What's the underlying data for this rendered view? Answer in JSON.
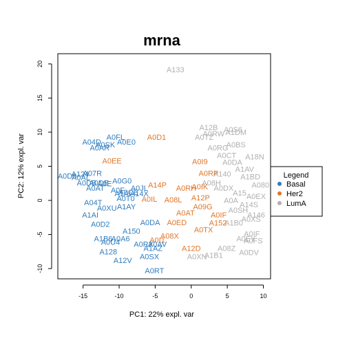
{
  "chart_data": {
    "type": "scatter",
    "title": "mrna",
    "xlabel": "PC1: 22% expl. var",
    "ylabel": "PC2: 12% expl. var",
    "xlim": [
      -18.5,
      11
    ],
    "ylim": [
      -11.5,
      21.5
    ],
    "xticks": [
      -15,
      -10,
      -5,
      0,
      5,
      10
    ],
    "yticks": [
      -10,
      -5,
      0,
      5,
      10,
      15,
      20
    ],
    "xtick_labels": [
      "-15",
      "-10",
      "-5",
      "0",
      "5",
      "10"
    ],
    "ytick_labels": [
      "-10",
      "-5",
      "0",
      "5",
      "10",
      "15",
      "20"
    ],
    "grid": false,
    "legend": {
      "title": "Legend",
      "placement": "right",
      "entries": [
        {
          "name": "Basal",
          "color": "#2e7cbf"
        },
        {
          "name": "Her2",
          "color": "#e07628"
        },
        {
          "name": "LumA",
          "color": "#b0b0b0"
        }
      ]
    },
    "series": [
      {
        "name": "Basal",
        "color": "#2e7cbf",
        "points": [
          {
            "label": "A0FL",
            "x": -10.5,
            "y": 9.3
          },
          {
            "label": "A04D",
            "x": -13.8,
            "y": 8.6
          },
          {
            "label": "A0E0",
            "x": -9.0,
            "y": 8.6
          },
          {
            "label": "A0SK",
            "x": -11.9,
            "y": 8.2
          },
          {
            "label": "A0AR",
            "x": -12.7,
            "y": 7.7
          },
          {
            "label": "A07R",
            "x": -13.7,
            "y": 4.0
          },
          {
            "label": "A124",
            "x": -15.4,
            "y": 3.9
          },
          {
            "label": "A0D0",
            "x": -17.2,
            "y": 3.6
          },
          {
            "label": "A0AL",
            "x": -15.3,
            "y": 3.4
          },
          {
            "label": "A0DB",
            "x": -14.5,
            "y": 2.6
          },
          {
            "label": "A0DE",
            "x": -12.8,
            "y": 2.6
          },
          {
            "label": "A0G0",
            "x": -9.6,
            "y": 2.9
          },
          {
            "label": "A0E",
            "x": -12.0,
            "y": 2.5
          },
          {
            "label": "A0AT",
            "x": -13.3,
            "y": 1.8
          },
          {
            "label": "A0JL",
            "x": -7.2,
            "y": 1.8
          },
          {
            "label": "A0F",
            "x": -10.2,
            "y": 1.5
          },
          {
            "label": "A1AI",
            "x": -9.5,
            "y": 1.0
          },
          {
            "label": "A0CE",
            "x": -8.7,
            "y": 1.2
          },
          {
            "label": "A14X",
            "x": -7.2,
            "y": 1.0
          },
          {
            "label": "A0T0",
            "x": -9.1,
            "y": 0.3
          },
          {
            "label": "A04T",
            "x": -13.6,
            "y": -0.3
          },
          {
            "label": "A0XU",
            "x": -11.7,
            "y": -1.1
          },
          {
            "label": "A1AY",
            "x": -9.0,
            "y": -0.9
          },
          {
            "label": "A1AI",
            "x": -14.0,
            "y": -2.1
          },
          {
            "label": "A0D2",
            "x": -12.6,
            "y": -3.5
          },
          {
            "label": "A0DA",
            "x": -5.7,
            "y": -3.2
          },
          {
            "label": "A150",
            "x": -8.3,
            "y": -4.5
          },
          {
            "label": "A1B6",
            "x": -12.2,
            "y": -5.6
          },
          {
            "label": "A0U4",
            "x": -11.2,
            "y": -6.1
          },
          {
            "label": "A0A6",
            "x": -9.8,
            "y": -5.6
          },
          {
            "label": "A0RX",
            "x": -6.6,
            "y": -6.4
          },
          {
            "label": "A0AV",
            "x": -4.7,
            "y": -6.4
          },
          {
            "label": "A1AZ",
            "x": -5.3,
            "y": -7.0
          },
          {
            "label": "A128",
            "x": -11.5,
            "y": -7.5
          },
          {
            "label": "A0SX",
            "x": -5.8,
            "y": -8.2
          },
          {
            "label": "A12V",
            "x": -9.5,
            "y": -8.8
          },
          {
            "label": "A0RT",
            "x": -5.1,
            "y": -10.3
          }
        ]
      },
      {
        "name": "Her2",
        "color": "#e07628",
        "points": [
          {
            "label": "A0D1",
            "x": -4.8,
            "y": 9.3
          },
          {
            "label": "A0EE",
            "x": -11.0,
            "y": 5.8
          },
          {
            "label": "A0I9",
            "x": 1.2,
            "y": 5.7
          },
          {
            "label": "A0RP",
            "x": 2.4,
            "y": 4.0
          },
          {
            "label": "A14P",
            "x": -4.7,
            "y": 2.3
          },
          {
            "label": "A0IK",
            "x": 1.2,
            "y": 2.0
          },
          {
            "label": "A0RH",
            "x": -0.7,
            "y": 1.8
          },
          {
            "label": "A12P",
            "x": 1.3,
            "y": 0.4
          },
          {
            "label": "A0IL",
            "x": -5.8,
            "y": 0.2
          },
          {
            "label": "A08L",
            "x": -2.5,
            "y": 0.1
          },
          {
            "label": "A09G",
            "x": 1.6,
            "y": -0.9
          },
          {
            "label": "A0IF",
            "x": 3.8,
            "y": -2.1
          },
          {
            "label": "A0AT",
            "x": -0.8,
            "y": -1.8
          },
          {
            "label": "A0ED",
            "x": -2.0,
            "y": -3.2
          },
          {
            "label": "A152",
            "x": 3.7,
            "y": -3.3
          },
          {
            "label": "A0TX",
            "x": 1.7,
            "y": -4.3
          },
          {
            "label": "A08X",
            "x": -3.0,
            "y": -5.2
          },
          {
            "label": "A0I1",
            "x": -4.7,
            "y": -5.8
          },
          {
            "label": "A12D",
            "x": 0.0,
            "y": -7.0
          }
        ]
      },
      {
        "name": "LumA",
        "color": "#b0b0b0",
        "points": [
          {
            "label": "A133",
            "x": -2.2,
            "y": 19.2
          },
          {
            "label": "A12B",
            "x": 2.4,
            "y": 10.7
          },
          {
            "label": "A0S6",
            "x": 5.8,
            "y": 10.4
          },
          {
            "label": "A1DM",
            "x": 6.2,
            "y": 10.0
          },
          {
            "label": "A0RW",
            "x": 3.1,
            "y": 9.8
          },
          {
            "label": "A0TZ",
            "x": 1.8,
            "y": 9.3
          },
          {
            "label": "A0RG",
            "x": 3.7,
            "y": 7.7
          },
          {
            "label": "A0BS",
            "x": 6.2,
            "y": 8.2
          },
          {
            "label": "A0CT",
            "x": 4.9,
            "y": 6.6
          },
          {
            "label": "A18N",
            "x": 8.8,
            "y": 6.4
          },
          {
            "label": "A0DA",
            "x": 5.7,
            "y": 5.6
          },
          {
            "label": "A1AV",
            "x": 7.4,
            "y": 4.6
          },
          {
            "label": "A140",
            "x": 4.3,
            "y": 3.9
          },
          {
            "label": "A1BD",
            "x": 8.2,
            "y": 3.5
          },
          {
            "label": "A08H",
            "x": 2.8,
            "y": 2.6
          },
          {
            "label": "A080",
            "x": 9.6,
            "y": 2.3
          },
          {
            "label": "A0DX",
            "x": 4.5,
            "y": 1.8
          },
          {
            "label": "A0EX",
            "x": 9.0,
            "y": 0.6
          },
          {
            "label": "A15",
            "x": 6.7,
            "y": 1.1
          },
          {
            "label": "A0A",
            "x": 5.5,
            "y": 0.0
          },
          {
            "label": "A14S",
            "x": 8.0,
            "y": -0.6
          },
          {
            "label": "A0SH",
            "x": 6.5,
            "y": -1.4
          },
          {
            "label": "A0XS",
            "x": 8.3,
            "y": -2.7
          },
          {
            "label": "A1B0",
            "x": 5.9,
            "y": -3.3
          },
          {
            "label": "A146",
            "x": 9.0,
            "y": -2.1
          },
          {
            "label": "A0IF",
            "x": 8.4,
            "y": -4.9
          },
          {
            "label": "A0FS",
            "x": 8.6,
            "y": -5.9
          },
          {
            "label": "A0EY",
            "x": 7.6,
            "y": -5.6
          },
          {
            "label": "A0DV",
            "x": 8.0,
            "y": -7.6
          },
          {
            "label": "A08Z",
            "x": 4.9,
            "y": -7.0
          },
          {
            "label": "A1B1",
            "x": 3.1,
            "y": -8.0
          },
          {
            "label": "A0XN",
            "x": 0.8,
            "y": -8.2
          }
        ]
      }
    ]
  }
}
